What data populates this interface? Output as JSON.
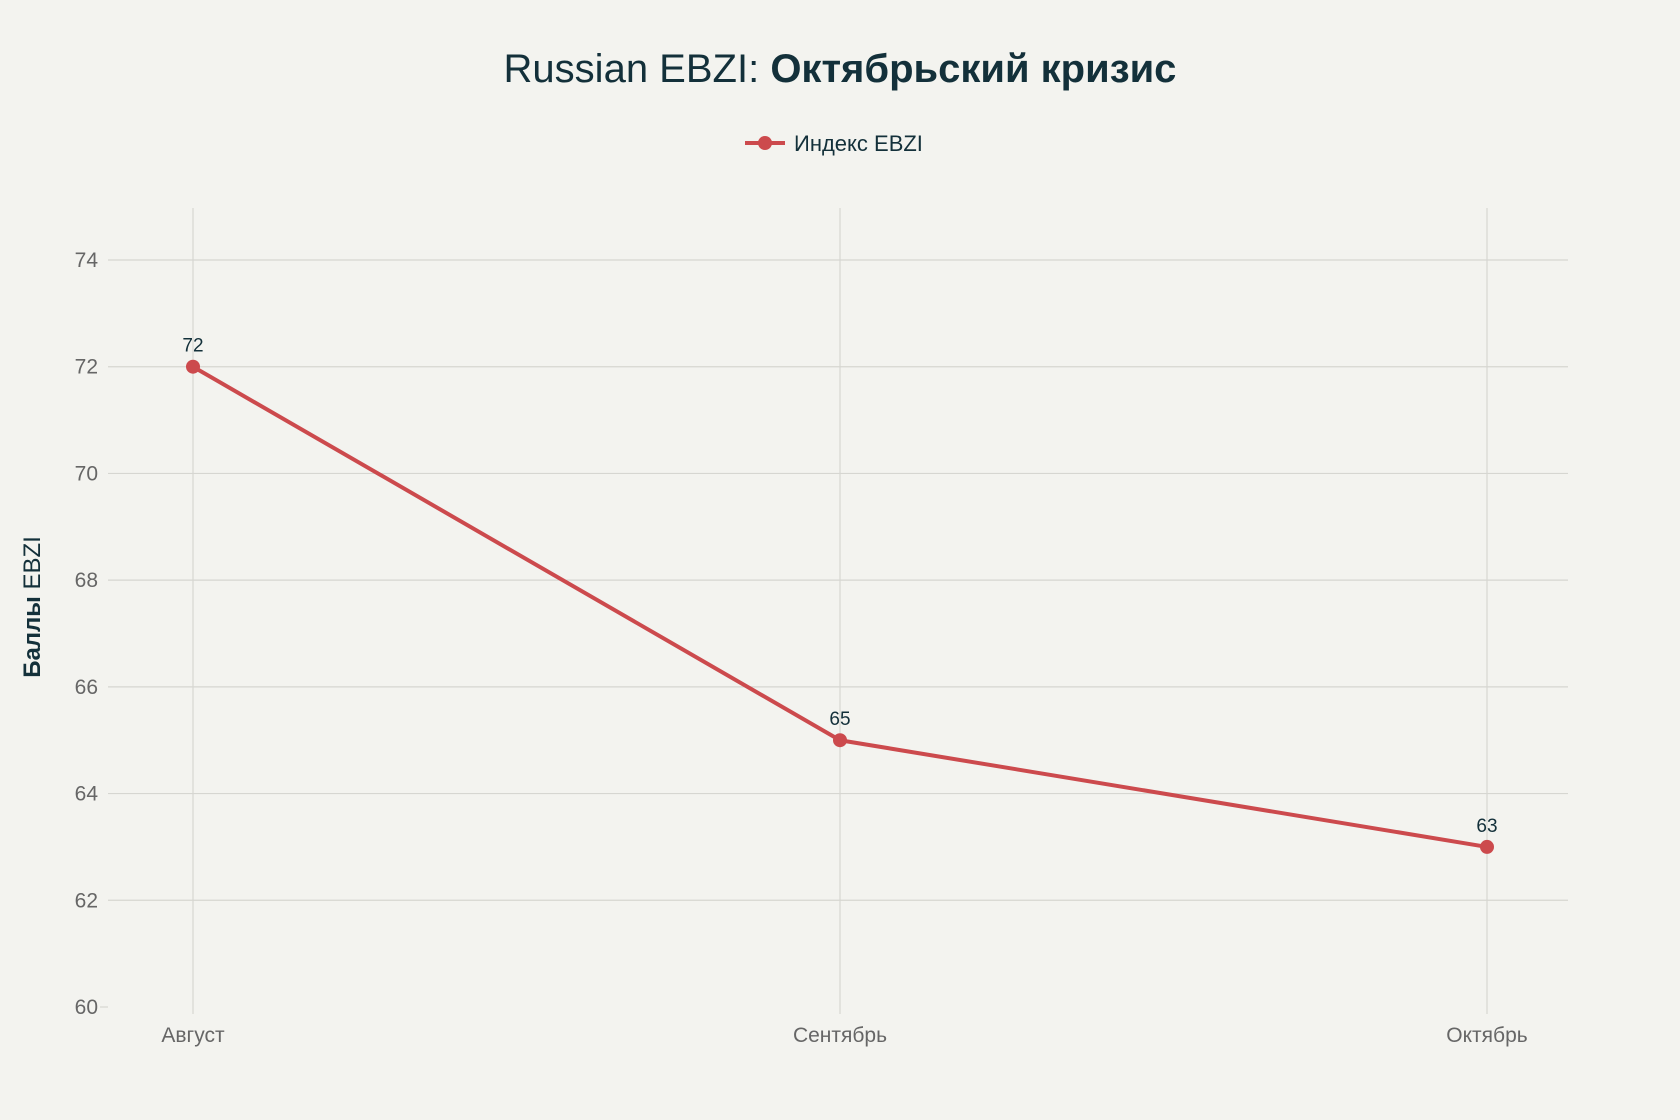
{
  "colors": {
    "background": "#f3f3ef",
    "series": "#cc4a4d",
    "grid": "#d6d6d1",
    "text_dark": "#13303a",
    "text_tick": "#666666"
  },
  "chart_data": {
    "type": "line",
    "title_regular": "Russian EBZI: ",
    "title_bold": "Октябрьский кризис",
    "categories": [
      "Август",
      "Сентябрь",
      "Октябрь"
    ],
    "series": [
      {
        "name": "Индекс EBZI",
        "values": [
          72,
          65,
          63
        ],
        "color": "#cc4a4d",
        "marker": "circle"
      }
    ],
    "data_labels": [
      "72",
      "65",
      "63"
    ],
    "ylabel_bold": "Баллы",
    "ylabel_regular": " EBZI",
    "ylim": [
      60,
      75
    ],
    "yticks": [
      60,
      62,
      64,
      66,
      68,
      70,
      72,
      74
    ],
    "grid": true,
    "legend_position": "top-center"
  }
}
